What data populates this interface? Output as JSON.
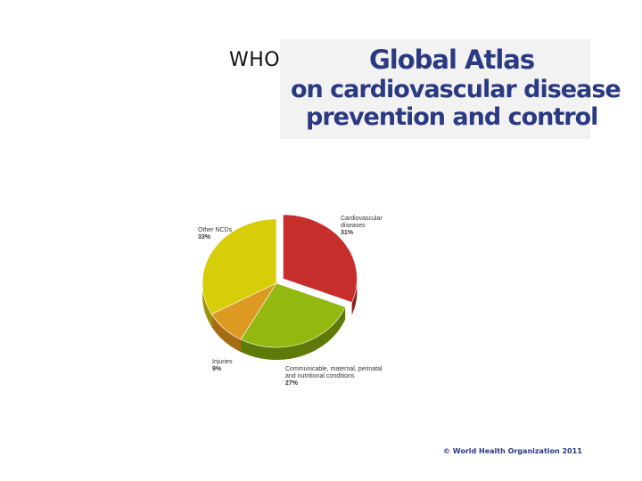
{
  "slide": {
    "who_label": "WHO",
    "banner": {
      "line1": "Global Atlas",
      "line2": "on cardiovascular disease",
      "line3": "prevention and control"
    },
    "footer": "© World Health Organization 2011"
  },
  "chart_data": {
    "type": "pie",
    "style": "3d",
    "slices": [
      {
        "label": "Cardiovascular diseases",
        "lines": [
          "Cardiovascular",
          "diseases"
        ],
        "percent_label": "31%",
        "value": 31,
        "color": "#c62e2b",
        "side": "#8f1d1b",
        "exploded": true
      },
      {
        "label": "Communicable, maternal, perinatal and nutritional conditions",
        "lines": [
          "Communicable, maternal, perinatal",
          "and nutritional conditions"
        ],
        "percent_label": "27%",
        "value": 27,
        "color": "#93b80f",
        "side": "#5e7a08"
      },
      {
        "label": "Injuries",
        "lines": [
          "Injuries"
        ],
        "percent_label": "9%",
        "value": 9,
        "color": "#dd9a23",
        "side": "#a36b12"
      },
      {
        "label": "Other NCDs",
        "lines": [
          "Other NCDs"
        ],
        "percent_label": "33%",
        "value": 33,
        "color": "#d8cd09",
        "side": "#9c9306"
      }
    ]
  }
}
